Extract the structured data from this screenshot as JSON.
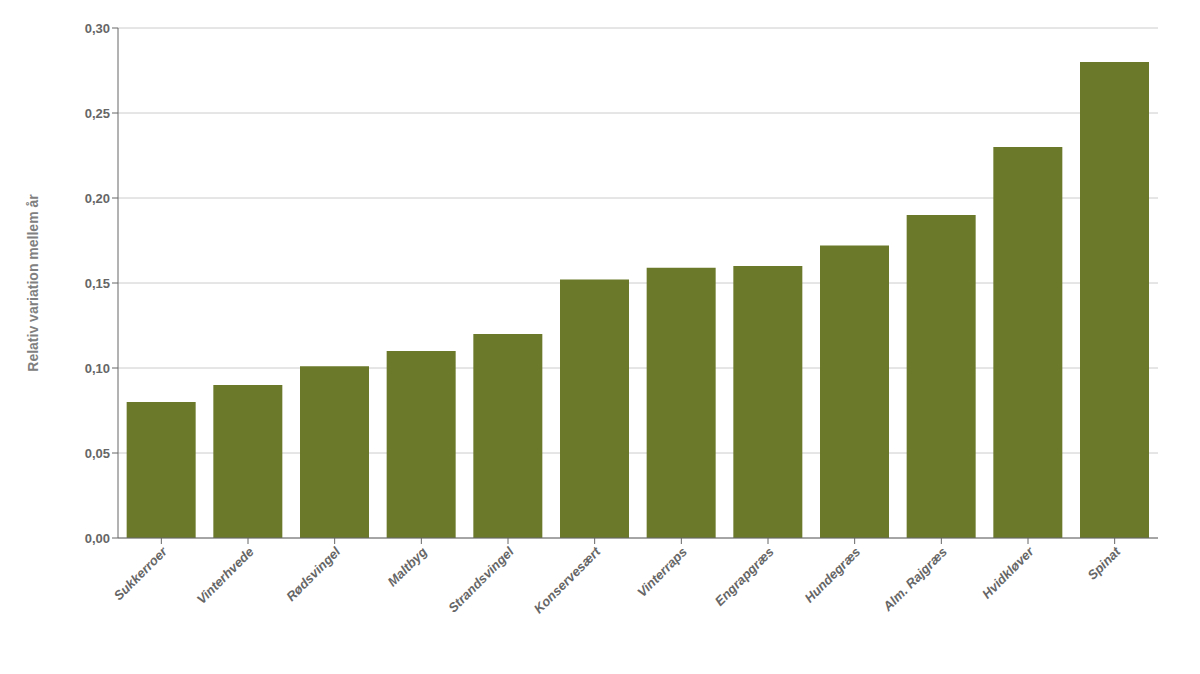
{
  "chart_data": {
    "type": "bar",
    "ylabel": "Relativ variation mellem år",
    "categories": [
      "Sukkerroer",
      "Vinterhvede",
      "Rødsvingel",
      "Maltbyg",
      "Strandsvingel",
      "Konservesært",
      "Vinterraps",
      "Engrapgræs",
      "Hundegræs",
      "Alm. Rajgræs",
      "Hvidkløver",
      "Spinat"
    ],
    "values": [
      0.08,
      0.09,
      0.101,
      0.11,
      0.12,
      0.152,
      0.159,
      0.16,
      0.172,
      0.19,
      0.23,
      0.28
    ],
    "color": "#6b7a2a",
    "ylim": [
      0,
      0.3
    ],
    "yticks": [
      {
        "value": 0.0,
        "label": "0,00"
      },
      {
        "value": 0.05,
        "label": "0,05"
      },
      {
        "value": 0.1,
        "label": "0,10"
      },
      {
        "value": 0.15,
        "label": "0,15"
      },
      {
        "value": 0.2,
        "label": "0,20"
      },
      {
        "value": 0.25,
        "label": "0,25"
      },
      {
        "value": 0.3,
        "label": "0,30"
      }
    ],
    "grid": true
  }
}
